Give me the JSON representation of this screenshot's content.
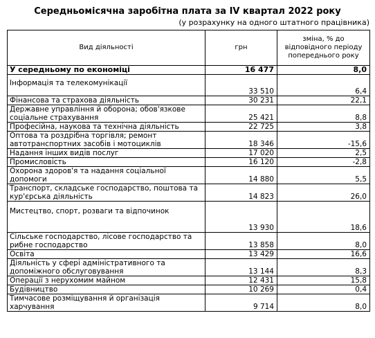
{
  "title": "Середньомісячна заробітна плата за IV квартал 2022 року",
  "subtitle": "(у розрахунку на одного штатного працівника)",
  "table": {
    "headers": [
      "Вид діяльності",
      "грн",
      "зміна, % до відповідного періоду попереднього року"
    ],
    "rows": [
      {
        "activity": "У середньому по економіці",
        "uah": "16 477",
        "change": "8,0",
        "bold": true
      },
      {
        "activity": "Інформація та телекомунікації",
        "uah": "33 510",
        "change": "6,4"
      },
      {
        "activity": "Фінансова та страхова діяльність",
        "uah": "30 231",
        "change": "22,1"
      },
      {
        "activity": "Державне управління й оборона; обов'язкове соціальне страхування",
        "uah": "25 421",
        "change": "8,8"
      },
      {
        "activity": "Професійна, наукова та технічна діяльність",
        "uah": "22 725",
        "change": "3,8"
      },
      {
        "activity": "Оптова та роздрібна торгівля; ремонт автотранспортних засобів і мотоциклів",
        "uah": "18 346",
        "change": "-15,6"
      },
      {
        "activity": "Надання інших видів послуг",
        "uah": "17 020",
        "change": "2,5"
      },
      {
        "activity": "Промисловість",
        "uah": "16 120",
        "change": "-2,8"
      },
      {
        "activity": "Охорона здоров'я та надання соціальної допомоги",
        "uah": "14 880",
        "change": "5,5"
      },
      {
        "activity": "Транспорт, складське господарство, поштова та кур'єрська діяльність",
        "uah": "14 823",
        "change": "26,0"
      },
      {
        "activity": "Мистецтво, спорт, розваги та відпочинок",
        "uah": "13 930",
        "change": "18,6"
      },
      {
        "activity": "Сільське господарство, лісове господарство та рибне господарство",
        "uah": "13 858",
        "change": "8,0"
      },
      {
        "activity": "Освіта",
        "uah": "13 429",
        "change": "16,6"
      },
      {
        "activity": "Діяльність у сфері адміністративного та допоміжного обслуговування",
        "uah": "13 144",
        "change": "8,3"
      },
      {
        "activity": "Операції з нерухомим майном",
        "uah": "12 431",
        "change": "15,8"
      },
      {
        "activity": "Будівництво",
        "uah": "10 269",
        "change": "0,4"
      },
      {
        "activity": "Тимчасове розміщування й організація харчування",
        "uah": "9 714",
        "change": "8,0"
      }
    ]
  }
}
